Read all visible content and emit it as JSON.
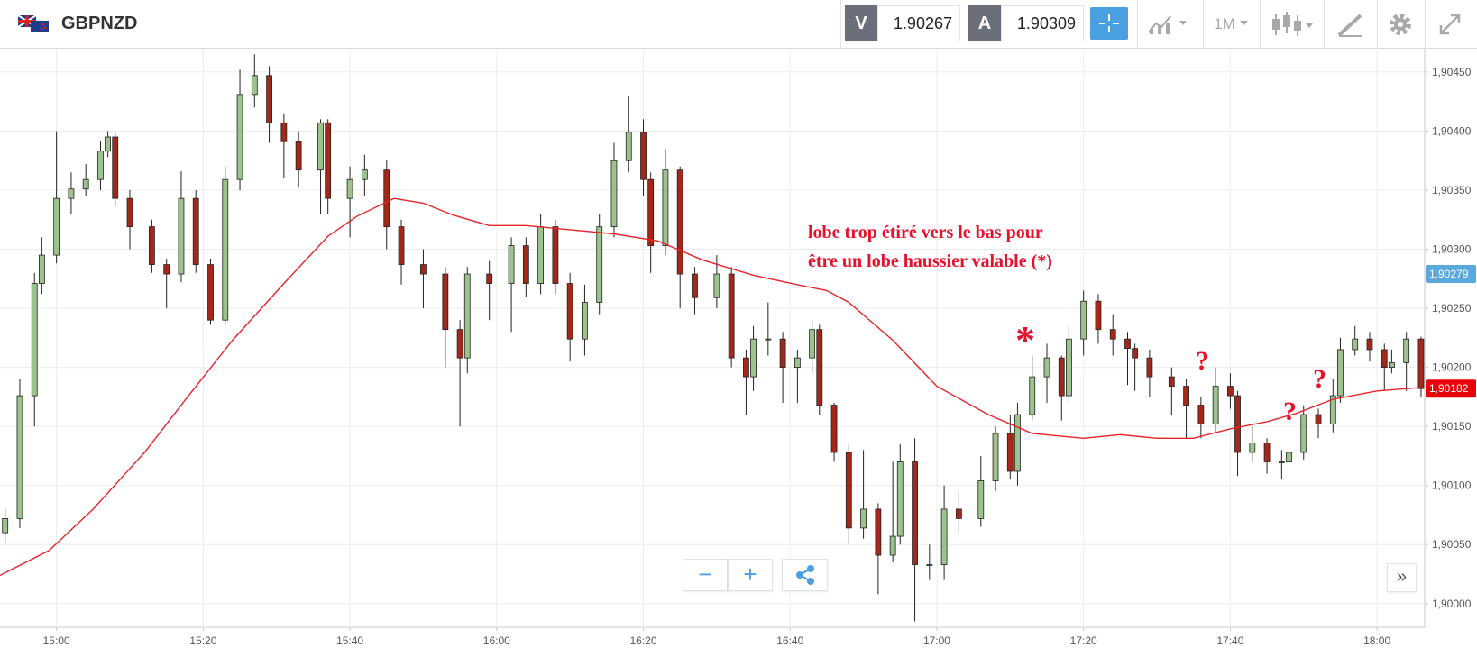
{
  "header": {
    "symbol": "GBPNZD",
    "sell_label": "V",
    "sell_price": 1.90267,
    "buy_label": "A",
    "buy_price": 1.90309,
    "timeframe": "1M"
  },
  "chart_data": {
    "type": "candlestick",
    "x": [
      893,
      895,
      897,
      898,
      900,
      902,
      904,
      906,
      907,
      908,
      910,
      913,
      915,
      917,
      919,
      921,
      923,
      925,
      927,
      929,
      931,
      933,
      936,
      937,
      940,
      942,
      945,
      947,
      950,
      953,
      955,
      956,
      959,
      962,
      964,
      966,
      968,
      970,
      972,
      974,
      976,
      978,
      980,
      981,
      983,
      985,
      987,
      990,
      992,
      994,
      995,
      997,
      999,
      1001,
      1003,
      1004,
      1006,
      1008,
      1010,
      1012,
      1014,
      1015,
      1017,
      1019,
      1021,
      1023,
      1026,
      1028,
      1030,
      1031,
      1033,
      1035,
      1037,
      1038,
      1040,
      1042,
      1044,
      1046,
      1047,
      1049,
      1052,
      1054,
      1056,
      1058,
      1060,
      1061,
      1063,
      1065,
      1067,
      1068,
      1070,
      1072,
      1074,
      1075,
      1077,
      1079,
      1081,
      1082,
      1084,
      1086
    ],
    "open": [
      1.9006,
      1.90072,
      1.90176,
      1.90271,
      1.90295,
      1.90343,
      1.90351,
      1.90359,
      1.90383,
      1.90395,
      1.90343,
      1.90319,
      1.90287,
      1.90279,
      1.90343,
      1.90287,
      1.9024,
      1.90359,
      1.90431,
      1.90447,
      1.90407,
      1.90391,
      1.90367,
      1.90407,
      1.90343,
      1.90359,
      1.90367,
      1.90319,
      1.90287,
      1.90279,
      1.90232,
      1.90208,
      1.90279,
      1.90271,
      1.90303,
      1.90271,
      1.90319,
      1.90271,
      1.90224,
      1.90255,
      1.90319,
      1.90375,
      1.90399,
      1.90359,
      1.90303,
      1.90367,
      1.90279,
      1.90259,
      1.90279,
      1.90208,
      1.90192,
      1.90224,
      1.90224,
      1.902,
      1.90208,
      1.90232,
      1.90168,
      1.90128,
      1.90064,
      1.9008,
      1.90041,
      1.90057,
      1.9012,
      1.90033,
      1.90033,
      1.9008,
      1.90072,
      1.90104,
      1.90144,
      1.90112,
      1.9016,
      1.90192,
      1.90208,
      1.90176,
      1.90224,
      1.90256,
      1.90232,
      1.90224,
      1.90216,
      1.90208,
      1.90192,
      1.90184,
      1.90168,
      1.90152,
      1.90184,
      1.90176,
      1.90128,
      1.90136,
      1.9012,
      1.9012,
      1.90128,
      1.9016,
      1.90152,
      1.90176,
      1.90215,
      1.90224,
      1.90215,
      1.902,
      1.90204,
      1.90224
    ],
    "high": [
      1.9008,
      1.9019,
      1.9028,
      1.9031,
      1.904,
      1.90365,
      1.90372,
      1.90392,
      1.904,
      1.90398,
      1.9035,
      1.90325,
      1.90292,
      1.90366,
      1.9035,
      1.90292,
      1.9037,
      1.90452,
      1.90465,
      1.90455,
      1.90415,
      1.904,
      1.9041,
      1.9041,
      1.9037,
      1.9038,
      1.90375,
      1.90325,
      1.903,
      1.90285,
      1.9024,
      1.90285,
      1.9029,
      1.9031,
      1.9031,
      1.9033,
      1.90325,
      1.9028,
      1.9027,
      1.9033,
      1.9039,
      1.9043,
      1.9041,
      1.90365,
      1.90385,
      1.9037,
      1.90285,
      1.90295,
      1.90285,
      1.90215,
      1.90235,
      1.90255,
      1.9023,
      1.90215,
      1.9024,
      1.90236,
      1.9017,
      1.90135,
      1.9013,
      1.90085,
      1.9012,
      1.90135,
      1.9014,
      1.9005,
      1.901,
      1.90095,
      1.90125,
      1.9015,
      1.9016,
      1.9017,
      1.9021,
      1.9022,
      1.9021,
      1.90235,
      1.90265,
      1.90262,
      1.90245,
      1.9023,
      1.9022,
      1.90215,
      1.902,
      1.9019,
      1.90175,
      1.902,
      1.90195,
      1.9018,
      1.9015,
      1.9014,
      1.9013,
      1.90135,
      1.90168,
      1.90165,
      1.9019,
      1.90225,
      1.90235,
      1.9023,
      1.9022,
      1.90215,
      1.9023,
      1.90226
    ],
    "low": [
      1.90052,
      1.90064,
      1.9015,
      1.90262,
      1.90288,
      1.9033,
      1.90345,
      1.9035,
      1.90378,
      1.90336,
      1.903,
      1.9028,
      1.9025,
      1.90272,
      1.9028,
      1.90236,
      1.90236,
      1.9035,
      1.9042,
      1.9039,
      1.9036,
      1.90352,
      1.9033,
      1.9033,
      1.9031,
      1.90345,
      1.903,
      1.9027,
      1.9025,
      1.902,
      1.9015,
      1.90195,
      1.9024,
      1.9023,
      1.9026,
      1.90262,
      1.90262,
      1.90205,
      1.9021,
      1.90245,
      1.9031,
      1.90365,
      1.90345,
      1.9028,
      1.90295,
      1.9025,
      1.90245,
      1.9025,
      1.902,
      1.9016,
      1.9018,
      1.9021,
      1.9017,
      1.9017,
      1.90195,
      1.9016,
      1.9012,
      1.9005,
      1.90055,
      1.90008,
      1.90035,
      1.9005,
      1.89985,
      1.9002,
      1.9002,
      1.9006,
      1.90065,
      1.90095,
      1.90105,
      1.901,
      1.90155,
      1.9017,
      1.90155,
      1.9017,
      1.9021,
      1.9022,
      1.9021,
      1.90185,
      1.9018,
      1.90175,
      1.9016,
      1.9014,
      1.9014,
      1.90145,
      1.90165,
      1.90108,
      1.9012,
      1.9011,
      1.90105,
      1.9011,
      1.90122,
      1.9014,
      1.90145,
      1.9017,
      1.9021,
      1.90205,
      1.9018,
      1.90195,
      1.9018,
      1.90175
    ],
    "close": [
      1.90072,
      1.90176,
      1.90271,
      1.90295,
      1.90343,
      1.90351,
      1.90359,
      1.90383,
      1.90395,
      1.90343,
      1.90319,
      1.90287,
      1.90279,
      1.90343,
      1.90287,
      1.9024,
      1.90359,
      1.90431,
      1.90447,
      1.90407,
      1.90391,
      1.90367,
      1.90407,
      1.90343,
      1.90359,
      1.90367,
      1.90319,
      1.90287,
      1.90279,
      1.90232,
      1.90208,
      1.90279,
      1.90271,
      1.90303,
      1.90271,
      1.90319,
      1.90271,
      1.90224,
      1.90255,
      1.90319,
      1.90375,
      1.90399,
      1.90359,
      1.90303,
      1.90367,
      1.90279,
      1.90259,
      1.90279,
      1.90208,
      1.90192,
      1.90224,
      1.90224,
      1.902,
      1.90208,
      1.90232,
      1.90168,
      1.90128,
      1.90064,
      1.9008,
      1.90041,
      1.90057,
      1.9012,
      1.90033,
      1.90033,
      1.9008,
      1.90072,
      1.90104,
      1.90144,
      1.90112,
      1.9016,
      1.90192,
      1.90208,
      1.90176,
      1.90224,
      1.90256,
      1.90232,
      1.90224,
      1.90216,
      1.90208,
      1.90192,
      1.90184,
      1.90168,
      1.90152,
      1.90184,
      1.90176,
      1.90128,
      1.90136,
      1.9012,
      1.9012,
      1.90128,
      1.9016,
      1.90152,
      1.90176,
      1.90215,
      1.90224,
      1.90215,
      1.902,
      1.90204,
      1.90224,
      1.90182
    ],
    "up_color": "#9cc38c",
    "down_color": "#a3281a",
    "overlay": {
      "type": "line",
      "color": "#e8232a",
      "x": [
        892,
        899,
        905,
        912,
        918,
        924,
        931,
        937,
        941,
        946,
        950,
        954,
        959,
        964,
        969,
        976,
        982,
        988,
        995,
        1001,
        1005,
        1008,
        1014,
        1020,
        1027,
        1033,
        1040,
        1045,
        1050,
        1055,
        1060,
        1065,
        1069,
        1074,
        1080,
        1086
      ],
      "values": [
        1.90023,
        1.90045,
        1.9008,
        1.90128,
        1.90176,
        1.90223,
        1.90271,
        1.90311,
        1.90328,
        1.90343,
        1.90339,
        1.90329,
        1.9032,
        1.9032,
        1.90317,
        1.90313,
        1.90307,
        1.90291,
        1.90278,
        1.9027,
        1.90265,
        1.90255,
        1.90223,
        1.90184,
        1.9016,
        1.90144,
        1.9014,
        1.90143,
        1.9014,
        1.9014,
        1.90148,
        1.90154,
        1.90161,
        1.90173,
        1.9018,
        1.90183
      ]
    },
    "xlim": [
      892.3,
      1086.5
    ],
    "ylim": [
      1.8998,
      1.90469
    ],
    "xticks": [
      {
        "value": 900,
        "label": "15:00"
      },
      {
        "value": 920,
        "label": "15:20"
      },
      {
        "value": 940,
        "label": "15:40"
      },
      {
        "value": 960,
        "label": "16:00"
      },
      {
        "value": 980,
        "label": "16:20"
      },
      {
        "value": 1000,
        "label": "16:40"
      },
      {
        "value": 1020,
        "label": "17:00"
      },
      {
        "value": 1040,
        "label": "17:20"
      },
      {
        "value": 1060,
        "label": "17:40"
      },
      {
        "value": 1080,
        "label": "18:00"
      }
    ],
    "yticks": [
      {
        "value": 1.9,
        "label": "1,90000"
      },
      {
        "value": 1.9005,
        "label": "1,90050"
      },
      {
        "value": 1.901,
        "label": "1,90100"
      },
      {
        "value": 1.9015,
        "label": "1,90150"
      },
      {
        "value": 1.902,
        "label": "1,90200"
      },
      {
        "value": 1.9025,
        "label": "1,90250"
      },
      {
        "value": 1.903,
        "label": "1,90300"
      },
      {
        "value": 1.9035,
        "label": "1,90350"
      },
      {
        "value": 1.904,
        "label": "1,90400"
      },
      {
        "value": 1.9045,
        "label": "1,90450"
      }
    ],
    "grid": true,
    "price_tags": [
      {
        "value": 1.90279,
        "label": "1,90279",
        "color": "#5aa9dc"
      },
      {
        "value": 1.90182,
        "label": "1,90182",
        "color": "#e8000b"
      }
    ],
    "annotations": [
      "lobe trop étiré vers le bas pour",
      "être un lobe haussier valable (*)",
      "*",
      "?",
      "?",
      "?"
    ]
  }
}
